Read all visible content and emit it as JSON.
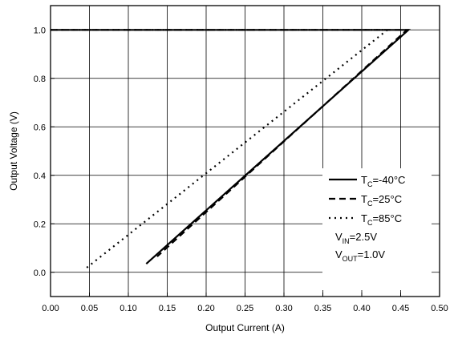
{
  "chart_data": {
    "type": "line",
    "xlabel": "Output Current (A)",
    "ylabel": "Output Voltage (V)",
    "xlim": [
      0.0,
      0.5
    ],
    "ylim": [
      -0.1,
      1.1
    ],
    "xticks": [
      "0.00",
      "0.05",
      "0.10",
      "0.15",
      "0.20",
      "0.25",
      "0.30",
      "0.35",
      "0.40",
      "0.45",
      "0.50"
    ],
    "yticks": [
      "0.0",
      "0.2",
      "0.4",
      "0.6",
      "0.8",
      "1.0"
    ],
    "grid": true,
    "legend_position": "bottom-right",
    "series": [
      {
        "name_main": "T",
        "name_sub": "C",
        "name_rest": "=-40°C",
        "style": "solid",
        "x": [
          0.0,
          0.46,
          0.123
        ],
        "y": [
          1.0,
          1.0,
          0.035
        ]
      },
      {
        "name_main": "T",
        "name_sub": "C",
        "name_rest": "=25°C",
        "style": "dashed",
        "x": [
          0.0,
          0.458,
          0.137
        ],
        "y": [
          1.0,
          1.0,
          0.065
        ]
      },
      {
        "name_main": "T",
        "name_sub": "C",
        "name_rest": "=85°C",
        "style": "dotted",
        "x": [
          0.0,
          0.433,
          0.043
        ],
        "y": [
          1.0,
          1.0,
          0.01
        ]
      }
    ],
    "annotations": [
      {
        "main": "V",
        "sub": "IN",
        "rest": "=2.5V"
      },
      {
        "main": "V",
        "sub": "OUT",
        "rest": "=1.0V"
      }
    ]
  }
}
